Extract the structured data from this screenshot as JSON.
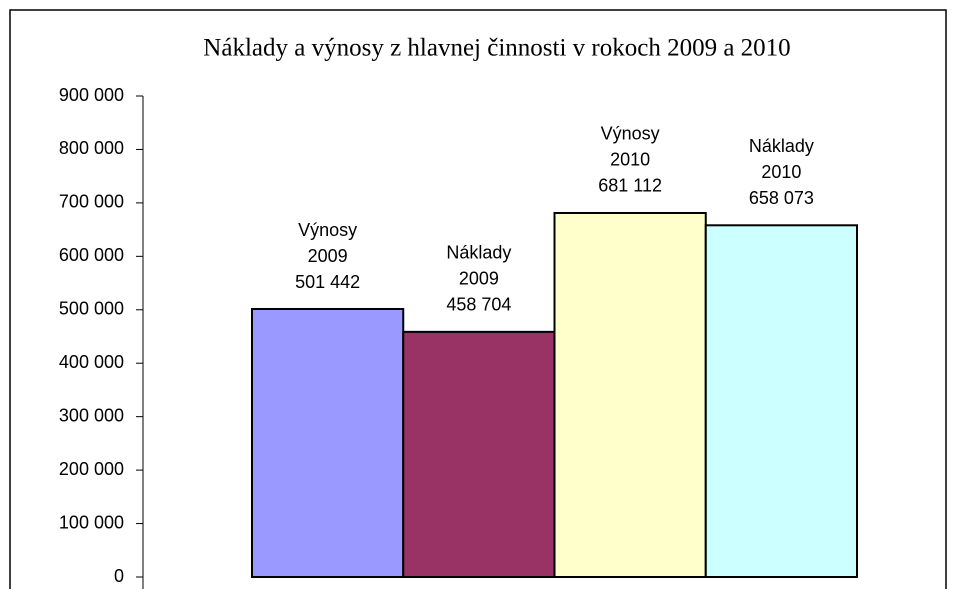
{
  "chart_data": {
    "type": "bar",
    "title": "Náklady a výnosy z hlavnej činnosti v rokoch 2009 a 2010",
    "names": [
      "Výnosy",
      "Náklady",
      "Výnosy",
      "Náklady"
    ],
    "categories": [
      "2009",
      "2009",
      "2010",
      "2010"
    ],
    "values": [
      501442,
      458704,
      681112,
      658073
    ],
    "value_labels": [
      "501 442",
      "458 704",
      "681 112",
      "658 073"
    ],
    "colors": [
      "#9999ff",
      "#993366",
      "#ffffcc",
      "#ccffff"
    ],
    "ylim": [
      0,
      900000
    ],
    "yticks": [
      0,
      {
        "value": 100000,
        "label": "100 000"
      },
      {
        "value": 200000,
        "label": "200 000"
      },
      {
        "value": 300000,
        "label": "300 000"
      },
      {
        "value": 400000,
        "label": "400 000"
      },
      {
        "value": 500000,
        "label": "500 000"
      },
      {
        "value": 600000,
        "label": "600 000"
      },
      {
        "value": 700000,
        "label": "700 000"
      },
      {
        "value": 800000,
        "label": "800 000"
      },
      {
        "value": 900000,
        "label": "900 000"
      }
    ],
    "grid": false
  }
}
